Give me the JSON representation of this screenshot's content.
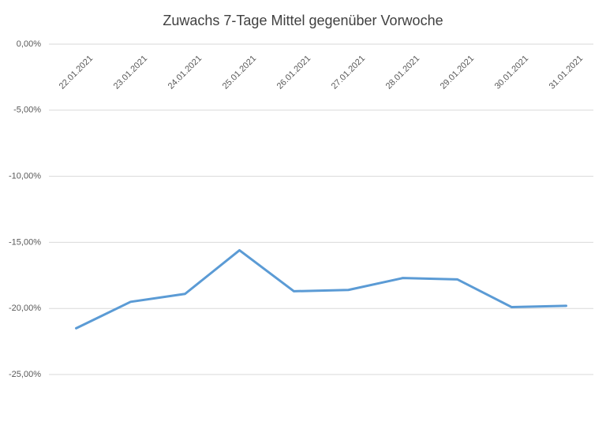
{
  "chart_data": {
    "type": "line",
    "title": "Zuwachs 7-Tage Mittel gegenüber Vorwoche",
    "categories": [
      "22.01.2021",
      "23.01.2021",
      "24.01.2021",
      "25.01.2021",
      "26.01.2021",
      "27.01.2021",
      "28.01.2021",
      "29.01.2021",
      "30.01.2021",
      "31.01.2021"
    ],
    "values": [
      -21.5,
      -19.5,
      -18.9,
      -15.6,
      -18.7,
      -18.6,
      -17.7,
      -17.8,
      -19.9,
      -19.8
    ],
    "color": "#5b9bd5",
    "ylim": [
      -25,
      0
    ],
    "yticks": [
      {
        "value": 0,
        "label": "0,00%"
      },
      {
        "value": -5,
        "label": "-5,00%"
      },
      {
        "value": -10,
        "label": "-10,00%"
      },
      {
        "value": -15,
        "label": "-15,00%"
      },
      {
        "value": -20,
        "label": "-20,00%"
      },
      {
        "value": -25,
        "label": "-25,00%"
      }
    ],
    "grid": true
  }
}
